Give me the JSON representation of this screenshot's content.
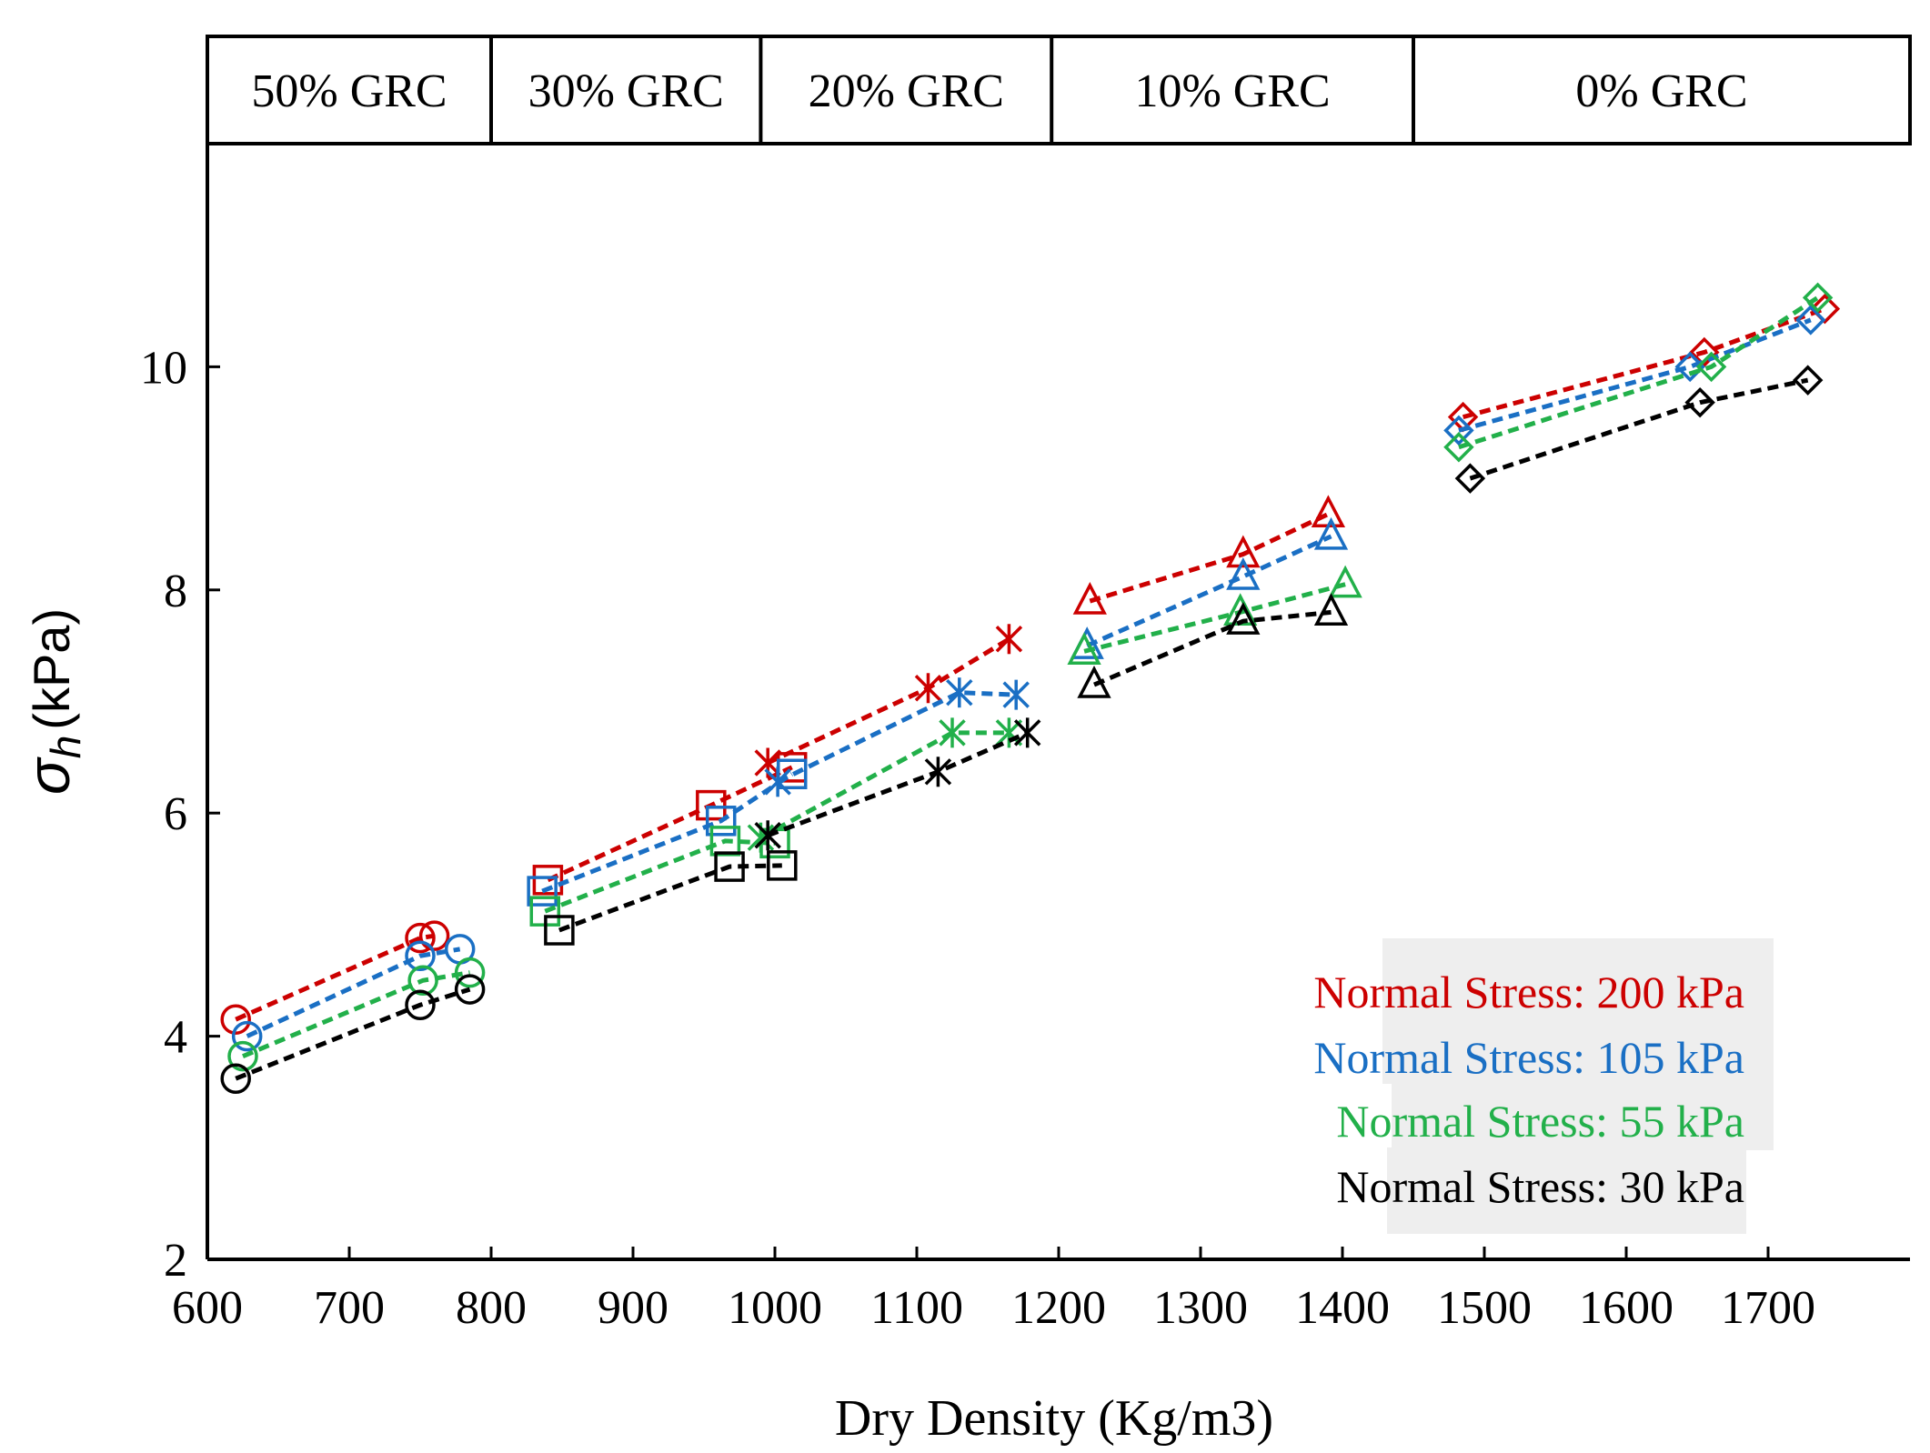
{
  "chart_data": {
    "type": "scatter",
    "xlabel": "Dry Density (Kg/m3)",
    "ylabel": "σh (kPa)",
    "ylabel_symbol": "σ",
    "ylabel_subscript": "h",
    "ylabel_unit": "(kPa)",
    "xlim": [
      600,
      1800
    ],
    "ylim": [
      2,
      12
    ],
    "xticks": [
      "600",
      "700",
      "800",
      "900",
      "1000",
      "1100",
      "1200",
      "1300",
      "1400",
      "1500",
      "1600",
      "1700"
    ],
    "yticks": [
      "2",
      "4",
      "6",
      "8",
      "10"
    ],
    "grid": false,
    "legend_placement": "bottom-right",
    "bands": [
      {
        "label": "50% GRC",
        "x_start": 600,
        "x_end": 800
      },
      {
        "label": "30% GRC",
        "x_start": 800,
        "x_end": 990
      },
      {
        "label": "20% GRC",
        "x_start": 990,
        "x_end": 1195
      },
      {
        "label": "10% GRC",
        "x_start": 1195,
        "x_end": 1450
      },
      {
        "label": "0% GRC",
        "x_start": 1450,
        "x_end": 1800
      }
    ],
    "groups": [
      {
        "band": "50% GRC",
        "marker": "circle"
      },
      {
        "band": "30% GRC",
        "marker": "square"
      },
      {
        "band": "20% GRC",
        "marker": "asterisk"
      },
      {
        "band": "10% GRC",
        "marker": "triangle"
      },
      {
        "band": "0% GRC",
        "marker": "diamond"
      }
    ],
    "series": [
      {
        "name": "Normal Stress: 200 kPa",
        "color": "#cc0000",
        "groups": [
          {
            "x": [
              620,
              750,
              760
            ],
            "y": [
              4.15,
              4.88,
              4.9
            ]
          },
          {
            "x": [
              840,
              955,
              1012
            ],
            "y": [
              5.4,
              6.07,
              6.41
            ]
          },
          {
            "x": [
              995,
              1108,
              1165
            ],
            "y": [
              6.45,
              7.12,
              7.56
            ]
          },
          {
            "x": [
              1222,
              1330,
              1390
            ],
            "y": [
              7.9,
              8.32,
              8.68
            ]
          },
          {
            "x": [
              1485,
              1655,
              1740
            ],
            "y": [
              9.55,
              10.13,
              10.52
            ]
          }
        ]
      },
      {
        "name": "Normal Stress: 105 kPa",
        "color": "#1a6fc4",
        "groups": [
          {
            "x": [
              628,
              750,
              778
            ],
            "y": [
              4.0,
              4.72,
              4.78
            ]
          },
          {
            "x": [
              836,
              962,
              1012
            ],
            "y": [
              5.3,
              5.93,
              6.35
            ]
          },
          {
            "x": [
              1002,
              1130,
              1170
            ],
            "y": [
              6.28,
              7.08,
              7.06
            ]
          },
          {
            "x": [
              1220,
              1330,
              1392
            ],
            "y": [
              7.5,
              8.12,
              8.48
            ]
          },
          {
            "x": [
              1482,
              1645,
              1730
            ],
            "y": [
              9.43,
              10.0,
              10.42
            ]
          }
        ]
      },
      {
        "name": "Normal Stress: 55 kPa",
        "color": "#22b04a",
        "groups": [
          {
            "x": [
              625,
              752,
              785
            ],
            "y": [
              3.82,
              4.5,
              4.57
            ]
          },
          {
            "x": [
              838,
              965,
              1000
            ],
            "y": [
              5.12,
              5.75,
              5.73
            ]
          },
          {
            "x": [
              990,
              1125,
              1165
            ],
            "y": [
              5.78,
              6.72,
              6.72
            ]
          },
          {
            "x": [
              1218,
              1328,
              1402
            ],
            "y": [
              7.45,
              7.8,
              8.05
            ]
          },
          {
            "x": [
              1482,
              1660,
              1735
            ],
            "y": [
              9.28,
              10.0,
              10.62
            ]
          }
        ]
      },
      {
        "name": "Normal Stress: 30 kPa",
        "color": "#000000",
        "groups": [
          {
            "x": [
              620,
              750,
              785
            ],
            "y": [
              3.62,
              4.28,
              4.42
            ]
          },
          {
            "x": [
              848,
              968,
              1005
            ],
            "y": [
              4.95,
              5.52,
              5.53
            ]
          },
          {
            "x": [
              995,
              1115,
              1178
            ],
            "y": [
              5.8,
              6.37,
              6.72
            ]
          },
          {
            "x": [
              1225,
              1330,
              1392
            ],
            "y": [
              7.15,
              7.72,
              7.8
            ]
          },
          {
            "x": [
              1490,
              1652,
              1728
            ],
            "y": [
              9.0,
              9.68,
              9.88
            ]
          }
        ]
      }
    ]
  }
}
